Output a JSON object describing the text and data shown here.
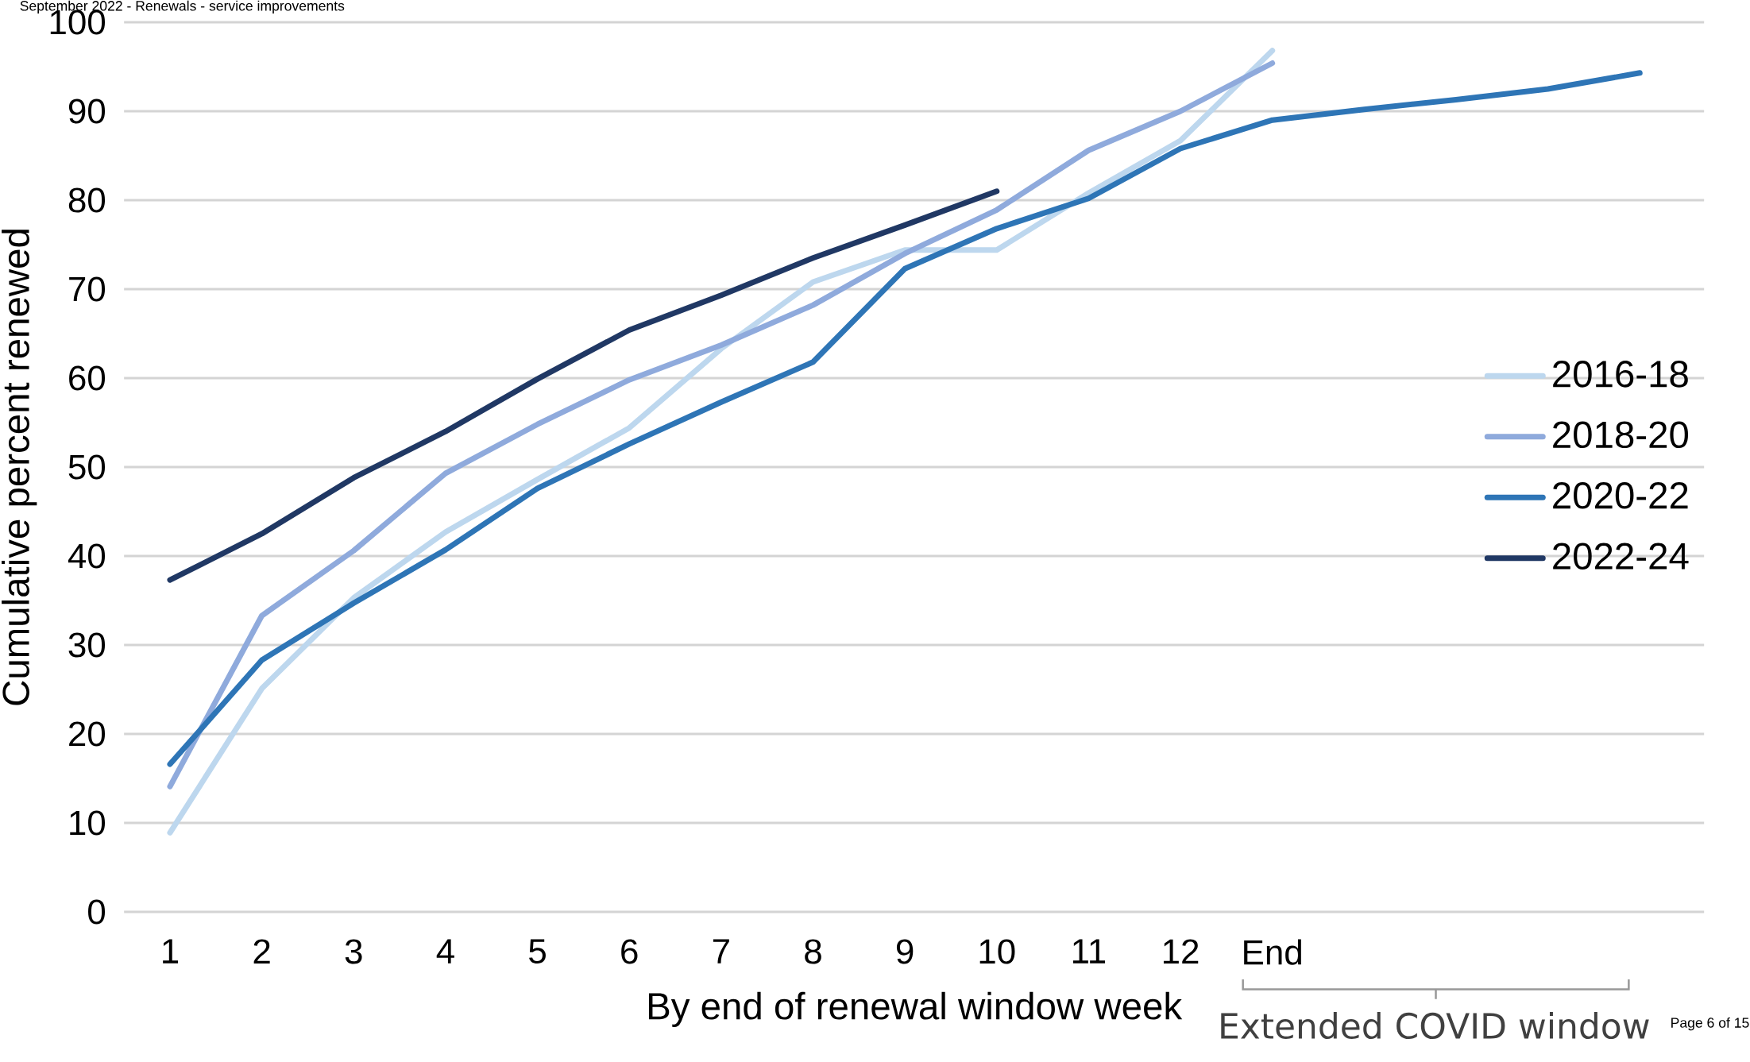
{
  "chart_data": {
    "type": "line",
    "xlabel": "By end of renewal window week",
    "ylabel": "Cumulative percent renewed",
    "annotations": [
      "September 2022 - Renewals - service improvements",
      "Extended COVID window",
      "Page 6 of 15"
    ],
    "categories": [
      "1",
      "2",
      "3",
      "4",
      "5",
      "6",
      "7",
      "8",
      "9",
      "10",
      "11",
      "12",
      "End",
      null,
      null,
      null,
      null
    ],
    "series": [
      {
        "name": "2016-18",
        "color": "#bdd7ee",
        "values": [
          8.9,
          25.1,
          35.3,
          42.7,
          48.6,
          54.4,
          63.3,
          70.8,
          74.4,
          74.4,
          80.8,
          86.7,
          96.8,
          null,
          null,
          null,
          null
        ]
      },
      {
        "name": "2018-20",
        "color": "#8faadc",
        "values": [
          14.1,
          33.3,
          40.6,
          49.3,
          54.8,
          59.8,
          63.7,
          68.2,
          74.0,
          78.9,
          85.6,
          90.0,
          95.4,
          null,
          null,
          null,
          null
        ]
      },
      {
        "name": "2020-22",
        "color": "#2e75b6",
        "values": [
          16.6,
          28.3,
          34.7,
          40.7,
          47.6,
          52.6,
          57.3,
          61.8,
          72.3,
          76.8,
          80.2,
          85.8,
          89.0,
          90.2,
          91.3,
          92.5,
          94.3
        ]
      },
      {
        "name": "2022-24",
        "color": "#203864",
        "values": [
          37.3,
          42.5,
          48.8,
          54.0,
          59.9,
          65.4,
          69.3,
          73.5,
          77.2,
          81.0,
          null,
          null,
          null,
          null,
          null,
          null,
          null
        ]
      }
    ],
    "ylim": [
      0,
      100
    ],
    "yticks": [
      0,
      10,
      20,
      30,
      40,
      50,
      60,
      70,
      80,
      90,
      100
    ],
    "grid": "y",
    "legend": "right",
    "line_style": "solid",
    "marker": "none"
  }
}
